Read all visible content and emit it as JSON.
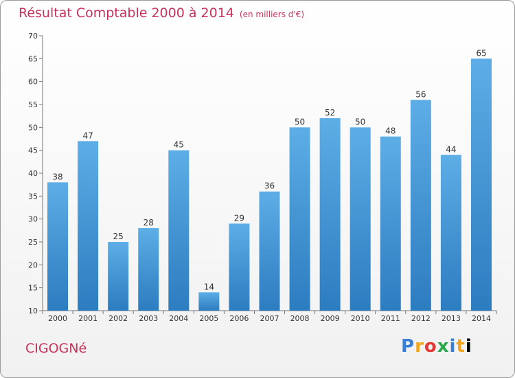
{
  "header": {
    "title": "Résultat Comptable 2000 à 2014",
    "subtitle": "(en milliers d'€)"
  },
  "footer": {
    "town": "CIGOGNé",
    "logo_letters": [
      "P",
      "r",
      "o",
      "x",
      "i",
      "t",
      "i"
    ]
  },
  "colors": {
    "bar_top": "#5dade6",
    "bar_bottom": "#2c7cc0",
    "title": "#c8325a"
  },
  "chart_data": {
    "type": "bar",
    "categories": [
      "2000",
      "2001",
      "2002",
      "2003",
      "2004",
      "2005",
      "2006",
      "2007",
      "2008",
      "2009",
      "2010",
      "2011",
      "2012",
      "2013",
      "2014"
    ],
    "values": [
      38,
      47,
      25,
      28,
      45,
      14,
      29,
      36,
      50,
      52,
      50,
      48,
      56,
      44,
      65
    ],
    "ylim": [
      10,
      70
    ],
    "yticks": [
      10,
      15,
      20,
      25,
      30,
      35,
      40,
      45,
      50,
      55,
      60,
      65,
      70
    ],
    "grid": false,
    "data_labels": true
  }
}
